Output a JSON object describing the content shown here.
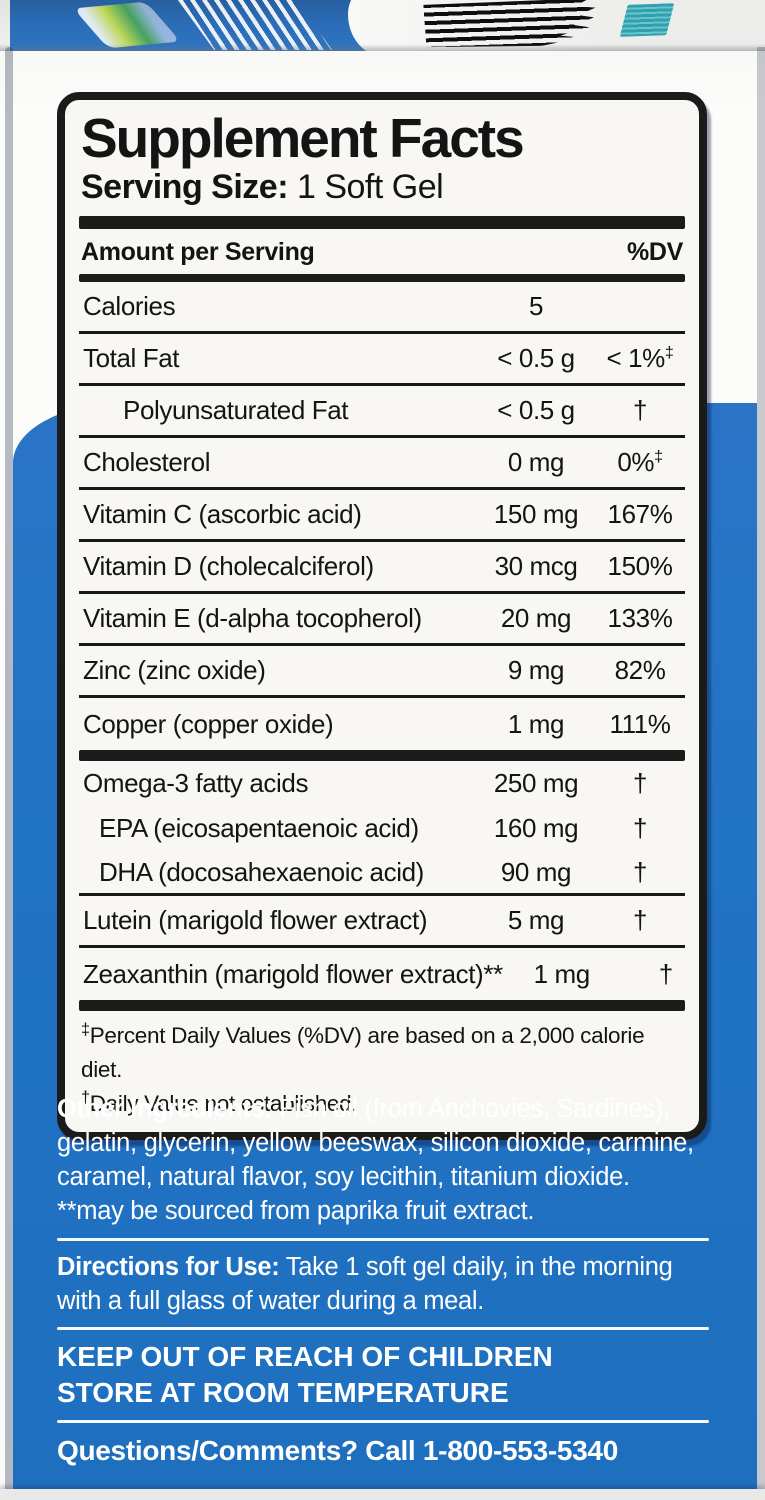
{
  "colors": {
    "box_blue": "#2173c4",
    "flap_blue": "#2b6cb7",
    "label_background": "#f8f7f4",
    "label_border": "#1b1b1b",
    "teal_sticker": "#3aa9b4",
    "info_text": "#ffffff"
  },
  "panel": {
    "title": "Supplement Facts",
    "serving_size_label": "Serving Size:",
    "serving_size_value": "1 Soft Gel",
    "header": {
      "amount": "Amount per Serving",
      "dv": "%DV"
    },
    "main_rows": [
      {
        "name": "Calories",
        "amount": "5",
        "dv": "",
        "dv_sup": "",
        "indent": 0,
        "rule_after": true
      },
      {
        "name": "Total Fat",
        "amount": "< 0.5 g",
        "dv": "< 1%",
        "dv_sup": "‡",
        "indent": 0,
        "rule_after": true
      },
      {
        "name": "Polyunsaturated Fat",
        "amount": "< 0.5 g",
        "dv": "†",
        "dv_sup": "",
        "indent": 1,
        "rule_after": true
      },
      {
        "name": "Cholesterol",
        "amount": "0 mg",
        "dv": "0%",
        "dv_sup": "‡",
        "indent": 0,
        "rule_after": true
      },
      {
        "name": "Vitamin C (ascorbic acid)",
        "amount": "150 mg",
        "dv": "167%",
        "dv_sup": "",
        "indent": 0,
        "rule_after": true
      },
      {
        "name": "Vitamin D (cholecalciferol)",
        "amount": "30 mcg",
        "dv": "150%",
        "dv_sup": "",
        "indent": 0,
        "rule_after": true
      },
      {
        "name": "Vitamin E (d-alpha tocopherol)",
        "amount": "20 mg",
        "dv": "133%",
        "dv_sup": "",
        "indent": 0,
        "rule_after": true
      },
      {
        "name": "Zinc (zinc oxide)",
        "amount": "9 mg",
        "dv": "82%",
        "dv_sup": "",
        "indent": 0,
        "rule_after": true
      },
      {
        "name": "Copper (copper oxide)",
        "amount": "1 mg",
        "dv": "111%",
        "dv_sup": "",
        "indent": 0,
        "rule_after": false
      }
    ],
    "secondary_rows": [
      {
        "name": "Omega-3 fatty acids",
        "amount": "250 mg",
        "dv": "†",
        "dv_sup": "",
        "indent": 0,
        "compact": true,
        "rule_after": false
      },
      {
        "name": "EPA (eicosapentaenoic acid)",
        "amount": "160 mg",
        "dv": "†",
        "dv_sup": "",
        "indent": 2,
        "compact": true,
        "rule_after": false
      },
      {
        "name": "DHA (docosahexaenoic acid)",
        "amount": "90 mg",
        "dv": "†",
        "dv_sup": "",
        "indent": 2,
        "compact": true,
        "rule_after": true
      },
      {
        "name": "Lutein (marigold flower extract)",
        "amount": "5 mg",
        "dv": "†",
        "dv_sup": "",
        "indent": 0,
        "compact": false,
        "rule_after": true
      },
      {
        "name": "Zeaxanthin (marigold flower extract)**",
        "amount": "1 mg",
        "dv": "†",
        "dv_sup": "",
        "indent": 0,
        "compact": false,
        "rule_after": false
      }
    ],
    "footnotes": [
      {
        "symbol": "‡",
        "text": "Percent Daily Values (%DV) are based on a 2,000 calorie diet."
      },
      {
        "symbol": "†",
        "text": "Daily Value not established."
      }
    ]
  },
  "info": {
    "other_ingredients_label": "Other Ingredients:",
    "other_ingredients": "Fish oil (from Anchovies, Sardines), gelatin, glycerin, yellow beeswax, silicon dioxide, carmine, caramel, natural flavor, soy lecithin, titanium dioxide.",
    "sourcing_note": "**may be sourced from paprika fruit extract.",
    "directions_label": "Directions for Use:",
    "directions": "Take 1 soft gel daily, in the morning with a full glass of water during a meal.",
    "warning_line_1": "KEEP OUT OF REACH OF CHILDREN",
    "warning_line_2": "STORE AT ROOM TEMPERATURE",
    "contact": "Questions/Comments? Call 1-800-553-5340"
  }
}
